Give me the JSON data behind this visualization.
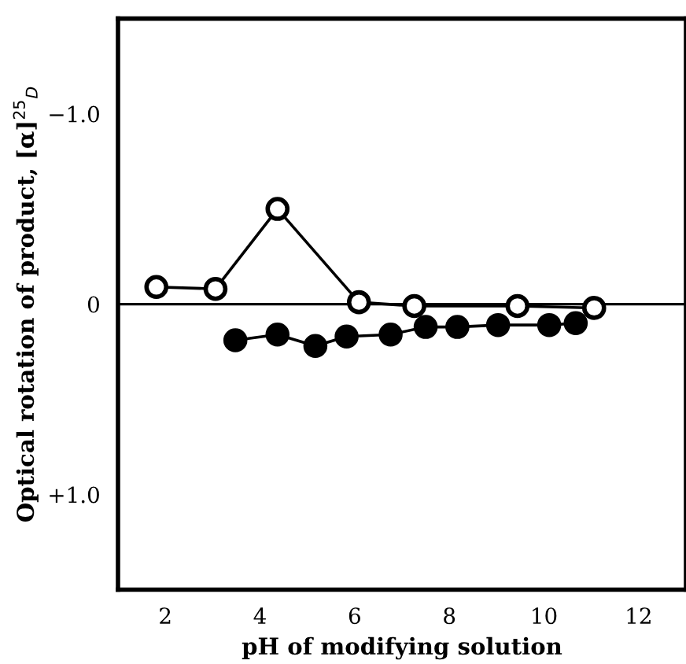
{
  "chart_data": {
    "type": "line",
    "xlabel": "pH of modifying solution",
    "ylabel": "Optical rotation of product, [α]$^{25}$$_{D}$",
    "series": [
      {
        "color": "#000000",
        "x": [
          1.81,
          3.06,
          4.37,
          6.09,
          7.26,
          9.44,
          11.06
        ],
        "values": [
          -0.09,
          -0.08,
          -0.5,
          -0.01,
          0.01,
          0.01,
          0.02
        ]
      },
      {
        "color": "#000000",
        "x": [
          3.48,
          4.37,
          5.17,
          5.83,
          6.76,
          7.5,
          8.17,
          9.03,
          10.11,
          10.67
        ],
        "values": [
          0.19,
          0.16,
          0.22,
          0.17,
          0.16,
          0.12,
          0.12,
          0.11,
          0.11,
          0.1
        ]
      }
    ],
    "xlim": [
      1,
      13
    ],
    "xticks": [
      2,
      4,
      6,
      8,
      10,
      12
    ],
    "ylim": [
      1.5,
      -1.5
    ],
    "yticks": [
      {
        "value": -1.0,
        "label": "−1.0"
      },
      0,
      {
        "value": 1.0,
        "label": "+1.0"
      }
    ],
    "ref_lines": [
      {
        "axis": "y",
        "value": 0,
        "color": "#000000"
      }
    ],
    "marker": "circle",
    "line_style": "solid",
    "grid": false,
    "legend": false
  }
}
